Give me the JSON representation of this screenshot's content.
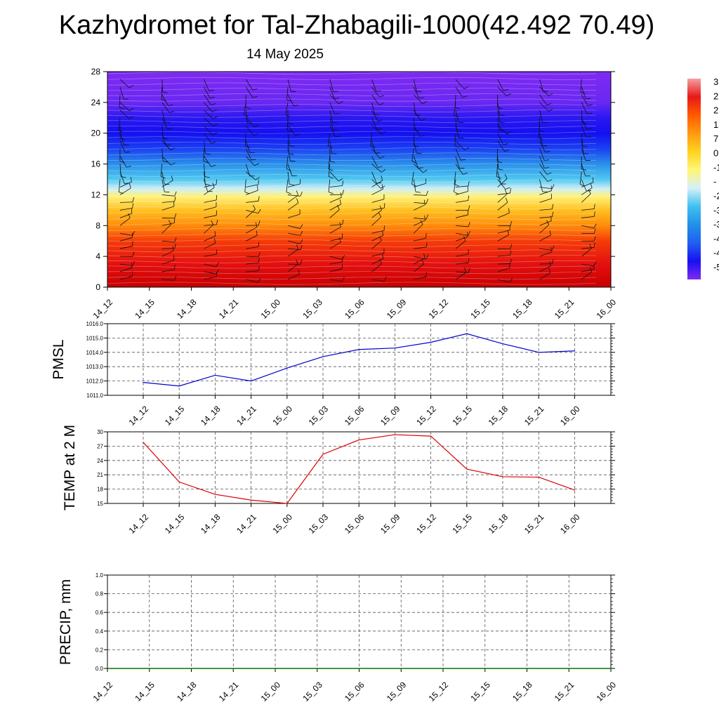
{
  "header": {
    "title": "Kazhydromet for Tal-Zhabagili-1000(42.492 70.49)",
    "subtitle": "14 May 2025"
  },
  "time_labels": [
    "14_12",
    "14_15",
    "14_18",
    "14_21",
    "15_00",
    "15_03",
    "15_06",
    "15_09",
    "15_12",
    "15_15",
    "15_18",
    "15_21",
    "16_00"
  ],
  "colorbar": {
    "labels": [
      "3",
      "2",
      "2",
      "1",
      "7",
      "0",
      "-1",
      "-",
      "-2",
      "-3",
      "-3",
      "-4",
      "-4",
      "-5"
    ],
    "colors": [
      "#f4a0a0",
      "#e81818",
      "#ff5a00",
      "#ff9a10",
      "#ffd21e",
      "#fff678",
      "#d6f0f8",
      "#40c0f0",
      "#2090e8",
      "#2060f0",
      "#1810f0",
      "#7f2af2"
    ]
  },
  "chart_data": [
    {
      "id": "cross-section",
      "type": "heatmap",
      "title": "Kazhydromet for Tal-Zhabagili-1000(42.492 70.49)",
      "subtitle": "14 May 2025",
      "xlabel": "",
      "ylabel": "",
      "categories": [
        "14_12",
        "14_15",
        "14_18",
        "14_21",
        "15_00",
        "15_03",
        "15_06",
        "15_09",
        "15_12",
        "15_15",
        "15_18",
        "15_21",
        "16_00"
      ],
      "yticks": [
        0,
        4,
        8,
        12,
        16,
        20,
        24,
        28
      ],
      "ylim": [
        0,
        28
      ],
      "bands": [
        {
          "y": 0,
          "color": "#c80000"
        },
        {
          "y": 3,
          "color": "#e41010"
        },
        {
          "y": 6,
          "color": "#f53c08"
        },
        {
          "y": 8,
          "color": "#ff8c0a"
        },
        {
          "y": 10,
          "color": "#ffc020"
        },
        {
          "y": 11.8,
          "color": "#fff27a"
        },
        {
          "y": 12.8,
          "color": "#cdeef6"
        },
        {
          "y": 14,
          "color": "#50c8f0"
        },
        {
          "y": 16,
          "color": "#2a90ea"
        },
        {
          "y": 18,
          "color": "#1a40f2"
        },
        {
          "y": 20,
          "color": "#1410f0"
        },
        {
          "y": 22,
          "color": "#2a18f0"
        },
        {
          "y": 24,
          "color": "#6a28f2"
        },
        {
          "y": 28,
          "color": "#7f2af2"
        }
      ],
      "wind_barbs": true
    },
    {
      "id": "pmsl",
      "type": "line",
      "ylabel": "PMSL",
      "categories": [
        "14_12",
        "14_15",
        "14_18",
        "14_21",
        "15_00",
        "15_03",
        "15_06",
        "15_09",
        "15_12",
        "15_15",
        "15_18",
        "15_21",
        "16_00"
      ],
      "yticks": [
        "1011.0",
        "1012.0",
        "1013.0",
        "1014.0",
        "1015.0",
        "1016.0"
      ],
      "ylim": [
        1011,
        1016
      ],
      "grid": true,
      "series": [
        {
          "color": "#0000cc",
          "values": [
            1011.9,
            1011.65,
            1012.4,
            1012.0,
            1012.9,
            1013.7,
            1014.2,
            1014.3,
            1014.7,
            1015.3,
            1014.6,
            1014.0,
            1014.1
          ]
        }
      ]
    },
    {
      "id": "temp2m",
      "type": "line",
      "ylabel": "TEMP at 2 M",
      "categories": [
        "14_12",
        "14_15",
        "14_18",
        "14_21",
        "15_00",
        "15_03",
        "15_06",
        "15_09",
        "15_12",
        "15_15",
        "15_18",
        "15_21",
        "16_00"
      ],
      "yticks": [
        "15",
        "18",
        "21",
        "24",
        "27",
        "30"
      ],
      "ylim": [
        15,
        30
      ],
      "grid": true,
      "series": [
        {
          "color": "#dd0000",
          "values": [
            27.8,
            19.5,
            16.9,
            15.7,
            15.0,
            25.3,
            28.3,
            29.4,
            29.1,
            22.2,
            20.6,
            20.5,
            17.8
          ]
        }
      ]
    },
    {
      "id": "precip",
      "type": "line",
      "ylabel": "PRECIP, mm",
      "categories": [
        "14_12",
        "14_15",
        "14_18",
        "14_21",
        "15_00",
        "15_03",
        "15_06",
        "15_09",
        "15_12",
        "15_15",
        "15_18",
        "15_21",
        "16_00"
      ],
      "yticks": [
        "0.0",
        "0.2",
        "0.4",
        "0.6",
        "0.8",
        "1.0"
      ],
      "ylim": [
        0,
        1
      ],
      "grid": true,
      "series": [
        {
          "color": "#007700",
          "values": [
            0,
            0,
            0,
            0,
            0,
            0,
            0,
            0,
            0,
            0,
            0,
            0,
            0
          ]
        }
      ]
    }
  ]
}
